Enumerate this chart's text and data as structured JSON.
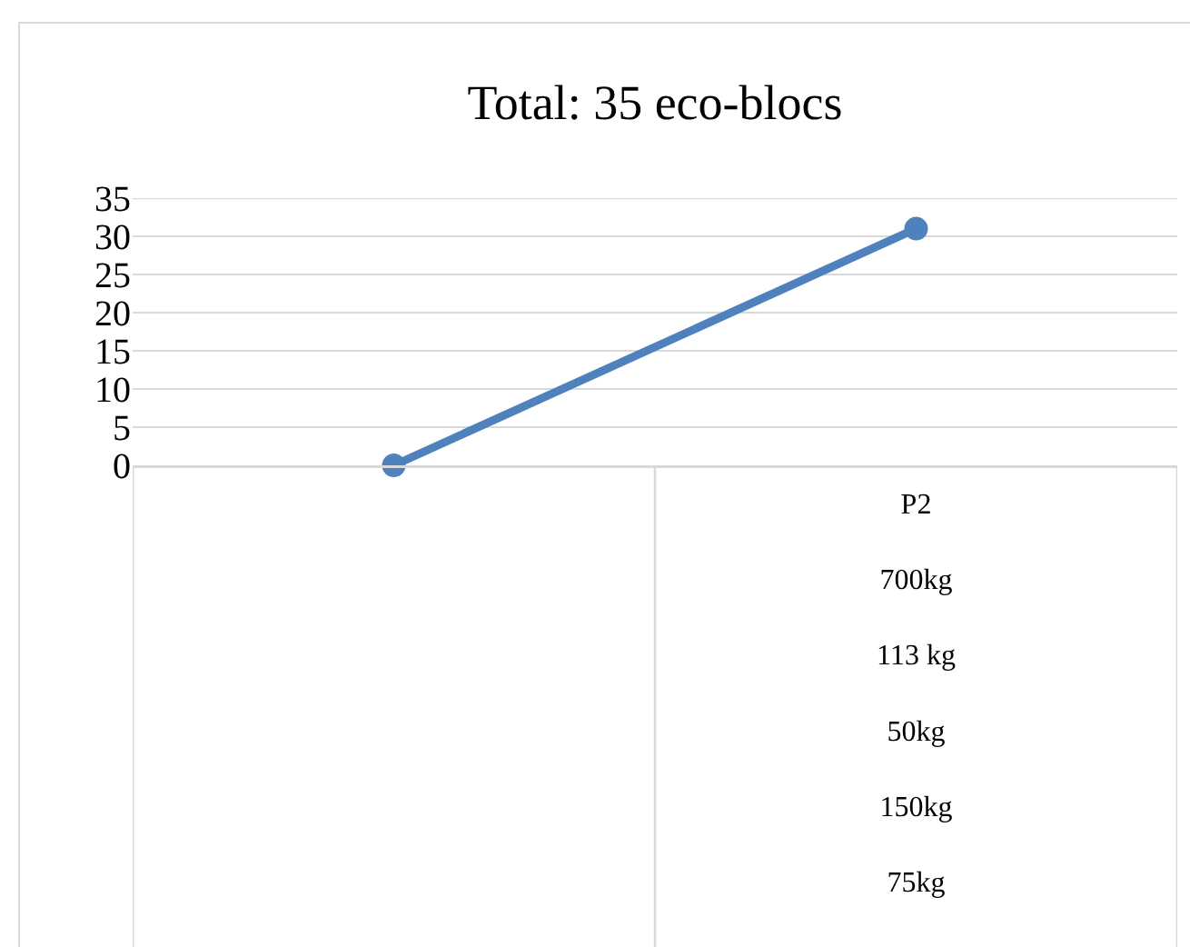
{
  "chart_data": {
    "type": "line",
    "title": "Total: 35 eco-blocs",
    "categories": [
      null,
      "P2\n700kg\n113 kg\n50kg\n150kg\n75kg"
    ],
    "series": [
      {
        "color": "#4f81bd",
        "values": [
          0,
          31
        ]
      }
    ],
    "ylim": [
      0,
      35
    ],
    "yticks": [
      0,
      5,
      10,
      15,
      20,
      25,
      30,
      35
    ],
    "grid": "y",
    "marker": "circle",
    "line_style": "solid"
  }
}
